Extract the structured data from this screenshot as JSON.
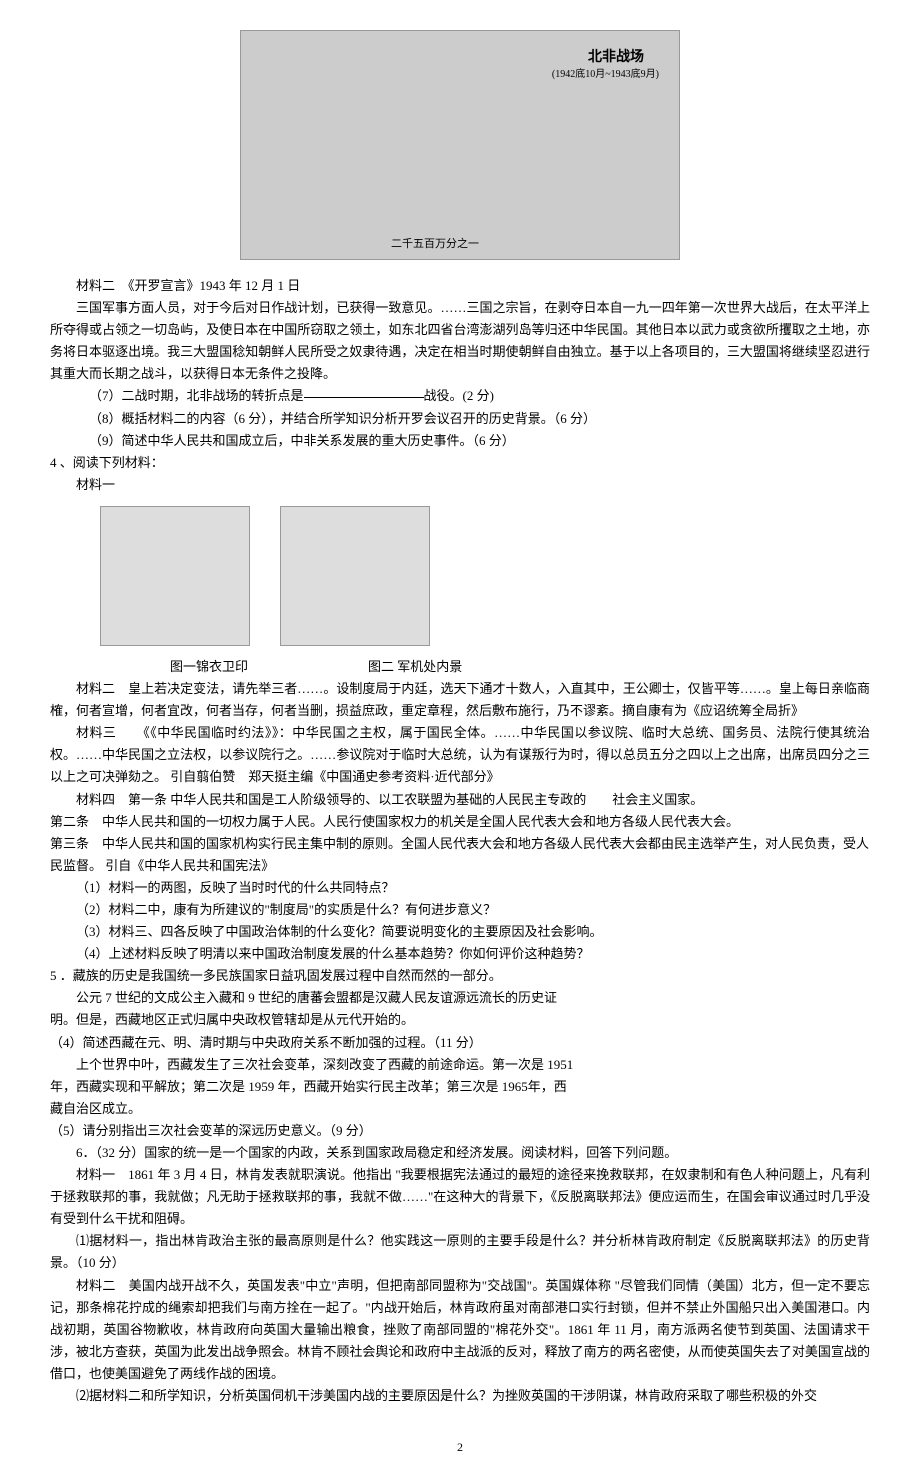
{
  "map": {
    "title": "北非战场",
    "subtitle": "(1942底10月~1943底9月)",
    "scale": "二千五百万分之一"
  },
  "material2_heading": "材料二　《开罗宣言》1943 年 12 月 1 日",
  "material2_body": "三国军事方面人员，对于今后对日作战计划，已获得一致意见。……三国之宗旨，在剥夺日本自一九一四年第一次世界大战后，在太平洋上所夺得或占领之一切岛屿，及使日本在中国所窃取之领土，如东北四省台湾澎湖列岛等归还中华民国。其他日本以武力或贪欲所攫取之土地，亦务将日本驱逐出境。我三大盟国稔知朝鲜人民所受之奴隶待遇，决定在相当时期使朝鲜自由独立。基于以上各项目的，三大盟国将继续坚忍进行其重大而长期之战斗，以获得日本无条件之投降。",
  "q7_prefix": "（7）二战时期，北非战场的转折点是",
  "q7_suffix": "战役。(2 分)",
  "q8": "（8）概括材料二的内容（6 分），并结合所学知识分析开罗会议召开的历史背景。（6 分）",
  "q9": "（9）简述中华人民共和国成立后，中非关系发展的重大历史事件。（6 分）",
  "section4": "4 、阅读下列材料：",
  "material_label": "材料一",
  "caption1": "图一锦衣卫印",
  "caption2": "图二  军机处内景",
  "material2b_heading": "材料二",
  "material2b_body": "皇上若决定变法，请先举三者……。设制度局于内廷，选天下通才十数人，入直其中，王公卿士，仅皆平等……。皇上每日亲临商榷，何者宣增，何者宜改，何者当存，何者当删，损益庶政，重定章程，然后敷布施行，乃不谬紊。摘自康有为《应诏统筹全局折》",
  "material3_heading": "材料三",
  "material3_body": "《《中华民国临时约法》》：中华民国之主权，属于国民全体。……中华民国以参议院、临时大总统、国务员、法院行使其统治权。……中华民国之立法权，以参议院行之。……参议院对于临时大总统，认为有谋叛行为时，得以总员五分之四以上之出席，出席员四分之三以上之可决弹劾之。 引自翦伯赞　郑天挺主编《中国通史参考资料·近代部分》",
  "material4_heading": "材料四",
  "material4_line1": "第一条  中华人民共和国是工人阶级领导的、以工农联盟为基础的人民民主专政的　　社会主义国家。",
  "material4_line2": "第二条　中华人民共和国的一切权力属于人民。人民行使国家权力的机关是全国人民代表大会和地方各级人民代表大会。",
  "material4_line3": "第三条　中华人民共和国的国家机构实行民主集中制的原则。全国人民代表大会和地方各级人民代表大会都由民主选举产生，对人民负责，受人民监督。 引自《中华人民共和国宪法》",
  "q4_1": "（1）材料一的两图，反映了当时时代的什么共同特点？",
  "q4_2": "（2）材料二中，康有为所建议的\"制度局\"的实质是什么？有何进步意义？",
  "q4_3": "（3）材料三、四各反映了中国政治体制的什么变化？简要说明变化的主要原因及社会影响。",
  "q4_4": "（4）上述材料反映了明清以来中国政治制度发展的什么基本趋势？你如何评价这种趋势？",
  "section5": "5 ．藏族的历史是我国统一多民族国家日益巩固发展过程中自然而然的一部分。",
  "section5_body1": "公元 7 世纪的文成公主入藏和 9 世纪的唐蕃会盟都是汉藏人民友谊源远流长的历史证",
  "section5_body2": "明。但是，西藏地区正式归属中央政权管辖却是从元代开始的。",
  "q5_4": "（4）简述西藏在元、明、清时期与中央政府关系不断加强的过程。（11 分）",
  "section5_body3": "上个世界中叶，西藏发生了三次社会变革，深刻改变了西藏的前途命运。第一次是 1951",
  "section5_body4": "年，西藏实现和平解放；第二次是 1959 年，西藏开始实行民主改革；第三次是 1965年，西",
  "section5_body5": "藏自治区成立。",
  "q5_5": "（5）请分别指出三次社会变革的深远历史意义。（9 分）",
  "section6_heading": "6．（32 分）国家的统一是一个国家的内政，关系到国家政局稳定和经济发展。阅读材料，回答下列问题。",
  "section6_m1_heading": "材料一",
  "section6_m1_body": "1861 年 3 月 4 日，林肯发表就职演说。他指出 \"我要根据宪法通过的最短的途径来挽救联邦，在奴隶制和有色人种问题上，凡有利于拯救联邦的事，我就做；凡无助于拯救联邦的事，我就不做……\"在这种大的背景下，《反脱离联邦法》便应运而生，在国会审议通过时几乎没有受到什么干扰和阻碍。",
  "q6_1": "⑴据材料一，指出林肯政治主张的最高原则是什么？他实践这一原则的主要手段是什么？并分析林肯政府制定《反脱离联邦法》的历史背景。（10 分）",
  "section6_m2_heading": "材料二",
  "section6_m2_body": "美国内战开战不久，英国发表\"中立\"声明，但把南部同盟称为\"交战国\"。英国媒体称 \"尽管我们同情（美国）北方，但一定不要忘记，那条棉花拧成的绳索却把我们与南方拴在一起了。\"内战开始后，林肯政府虽对南部港口实行封锁，但并不禁止外国船只出入美国港口。内战初期，英国谷物歉收，林肯政府向英国大量输出粮食，挫败了南部同盟的\"棉花外交\"。1861 年 11 月，南方派两名使节到英国、法国请求干涉，被北方查获，英国为此发出战争照会。林肯不顾社会舆论和政府中主战派的反对，释放了南方的两名密使，从而使英国失去了对美国宣战的借口，也使美国避免了两线作战的困境。",
  "q6_2": "⑵据材料二和所学知识，分析英国伺机干涉美国内战的主要原因是什么？为挫败英国的干涉阴谋，林肯政府采取了哪些积极的外交",
  "page_number": "2"
}
